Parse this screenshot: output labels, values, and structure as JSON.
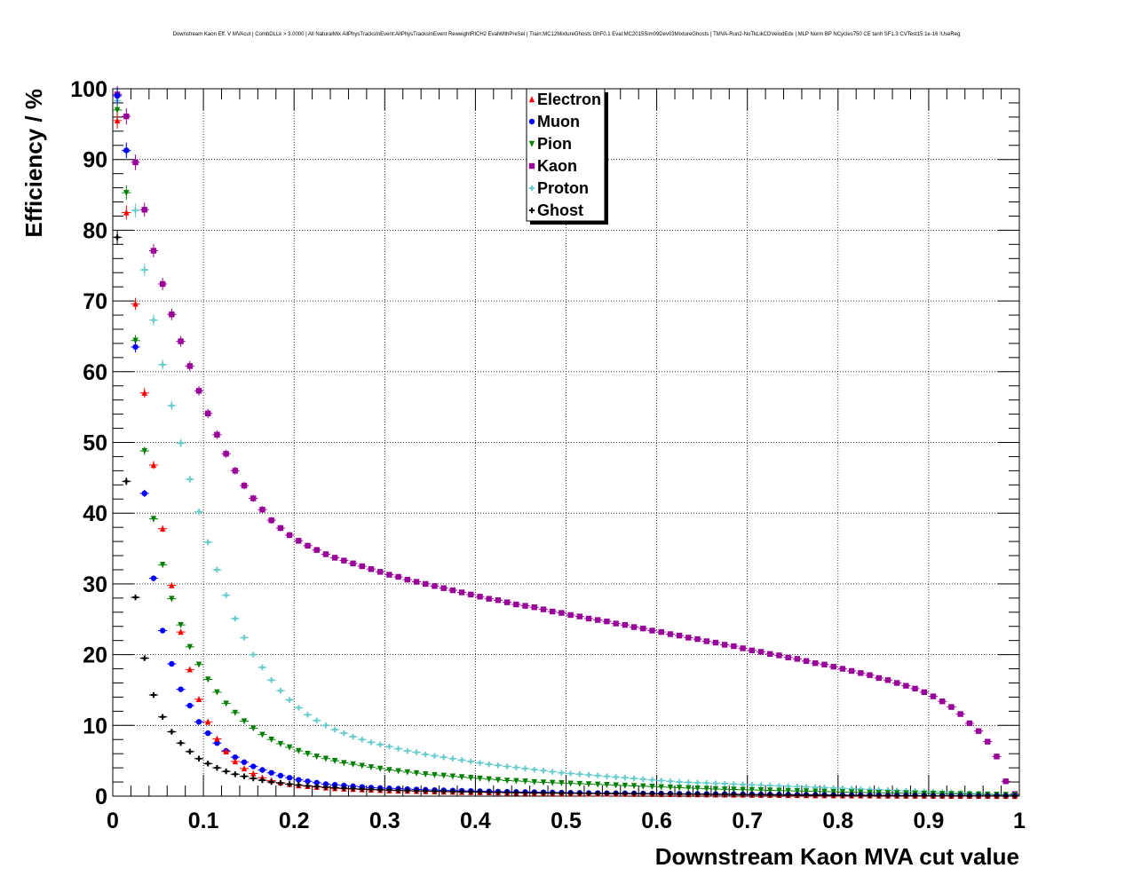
{
  "chart_data": {
    "type": "scatter",
    "title": "Downstream Kaon Eff. V MVAcut | CombDLLk > 3.0000 | All NaturalMix AllPhysTracksInEvent:AllPhysTracksInEvent ReweightRICH2 EvalWithPreSel | Train:MC12MixtureGhosts GhF0.1 Eval:MC2015Sim09Dev03MixtureGhosts | TMVA-Run2-NoTkLikCDVelodEdx | MLP Norm BP NCycles750 CE tanh SF1.3 CVTest15:1e-16 !UseReg",
    "xlabel": "Downstream Kaon MVA cut value",
    "ylabel": "Efficiency / %",
    "xlim": [
      0,
      1
    ],
    "ylim": [
      0,
      100
    ],
    "x_ticks": [
      "0",
      "0.1",
      "0.2",
      "0.3",
      "0.4",
      "0.5",
      "0.6",
      "0.7",
      "0.8",
      "0.9",
      "1"
    ],
    "y_ticks": [
      "0",
      "10",
      "20",
      "30",
      "40",
      "50",
      "60",
      "70",
      "80",
      "90",
      "100"
    ],
    "grid": true,
    "legend_position": "top-center",
    "x": [
      0.005,
      0.015,
      0.025,
      0.035,
      0.045,
      0.055,
      0.065,
      0.075,
      0.085,
      0.095,
      0.105,
      0.115,
      0.125,
      0.135,
      0.145,
      0.155,
      0.165,
      0.175,
      0.185,
      0.195,
      0.205,
      0.215,
      0.225,
      0.235,
      0.245,
      0.255,
      0.265,
      0.275,
      0.285,
      0.295,
      0.305,
      0.315,
      0.325,
      0.335,
      0.345,
      0.355,
      0.365,
      0.375,
      0.385,
      0.395,
      0.405,
      0.415,
      0.425,
      0.435,
      0.445,
      0.455,
      0.465,
      0.475,
      0.485,
      0.495,
      0.505,
      0.515,
      0.525,
      0.535,
      0.545,
      0.555,
      0.565,
      0.575,
      0.585,
      0.595,
      0.605,
      0.615,
      0.625,
      0.635,
      0.645,
      0.655,
      0.665,
      0.675,
      0.685,
      0.695,
      0.705,
      0.715,
      0.725,
      0.735,
      0.745,
      0.755,
      0.765,
      0.775,
      0.785,
      0.795,
      0.805,
      0.815,
      0.825,
      0.835,
      0.845,
      0.855,
      0.865,
      0.875,
      0.885,
      0.895,
      0.905,
      0.915,
      0.925,
      0.935,
      0.945,
      0.955,
      0.965,
      0.975,
      0.985,
      0.995
    ],
    "series": [
      {
        "name": "Electron",
        "color": "#ff0000",
        "marker": "triangle-up",
        "values": [
          95.5,
          82.5,
          69.6,
          57.0,
          46.8,
          37.8,
          29.8,
          23.2,
          17.9,
          13.7,
          10.5,
          8.1,
          6.3,
          4.9,
          3.9,
          3.2,
          2.6,
          2.2,
          1.9,
          1.7,
          1.5,
          1.4,
          1.3,
          1.2,
          1.1,
          1.05,
          1.0,
          0.95,
          0.9,
          0.85,
          0.8,
          0.77,
          0.74,
          0.71,
          0.68,
          0.65,
          0.62,
          0.6,
          0.58,
          0.56,
          0.54,
          0.52,
          0.5,
          0.48,
          0.46,
          0.44,
          0.42,
          0.41,
          0.4,
          0.39,
          0.38,
          0.37,
          0.36,
          0.35,
          0.34,
          0.33,
          0.32,
          0.31,
          0.3,
          0.29,
          0.28,
          0.27,
          0.26,
          0.25,
          0.24,
          0.23,
          0.22,
          0.21,
          0.2,
          0.19,
          0.18,
          0.17,
          0.16,
          0.15,
          0.14,
          0.13,
          0.12,
          0.11,
          0.1,
          0.1,
          0.09,
          0.09,
          0.08,
          0.08,
          0.07,
          0.07,
          0.06,
          0.06,
          0.05,
          0.05,
          0.04,
          0.04,
          0.03,
          0.03,
          0.02,
          0.02,
          0.02,
          0.01,
          0.01,
          0.01
        ]
      },
      {
        "name": "Muon",
        "color": "#0000ff",
        "marker": "circle",
        "values": [
          99.0,
          91.3,
          63.5,
          42.8,
          30.8,
          23.4,
          18.7,
          15.1,
          12.8,
          10.5,
          8.9,
          7.5,
          6.4,
          5.5,
          4.8,
          4.2,
          3.7,
          3.3,
          2.9,
          2.6,
          2.3,
          2.1,
          1.9,
          1.7,
          1.6,
          1.5,
          1.4,
          1.3,
          1.2,
          1.15,
          1.1,
          1.05,
          1.0,
          0.95,
          0.9,
          0.86,
          0.82,
          0.79,
          0.76,
          0.73,
          0.7,
          0.67,
          0.64,
          0.62,
          0.6,
          0.58,
          0.56,
          0.54,
          0.52,
          0.5,
          0.48,
          0.46,
          0.44,
          0.43,
          0.42,
          0.41,
          0.4,
          0.39,
          0.38,
          0.37,
          0.36,
          0.35,
          0.34,
          0.33,
          0.32,
          0.31,
          0.3,
          0.29,
          0.28,
          0.27,
          0.26,
          0.25,
          0.24,
          0.23,
          0.22,
          0.21,
          0.2,
          0.19,
          0.18,
          0.17,
          0.16,
          0.15,
          0.14,
          0.13,
          0.12,
          0.11,
          0.1,
          0.09,
          0.08,
          0.07,
          0.06,
          0.06,
          0.05,
          0.05,
          0.04,
          0.04,
          0.03,
          0.03,
          0.02,
          0.02
        ]
      },
      {
        "name": "Pion",
        "color": "#008000",
        "marker": "triangle-down",
        "values": [
          97.0,
          85.3,
          64.4,
          48.8,
          39.2,
          32.7,
          27.9,
          24.2,
          21.1,
          18.6,
          16.5,
          14.7,
          13.1,
          11.8,
          10.6,
          9.6,
          8.7,
          8.0,
          7.4,
          6.9,
          6.4,
          6.0,
          5.6,
          5.3,
          5.0,
          4.7,
          4.5,
          4.3,
          4.1,
          3.9,
          3.7,
          3.55,
          3.4,
          3.25,
          3.1,
          3.0,
          2.9,
          2.8,
          2.7,
          2.6,
          2.5,
          2.4,
          2.3,
          2.2,
          2.15,
          2.1,
          2.0,
          1.95,
          1.9,
          1.85,
          1.8,
          1.75,
          1.7,
          1.65,
          1.6,
          1.55,
          1.5,
          1.45,
          1.4,
          1.35,
          1.3,
          1.25,
          1.2,
          1.15,
          1.1,
          1.05,
          1.0,
          0.97,
          0.94,
          0.91,
          0.88,
          0.85,
          0.82,
          0.79,
          0.76,
          0.73,
          0.7,
          0.67,
          0.64,
          0.61,
          0.58,
          0.55,
          0.52,
          0.5,
          0.48,
          0.46,
          0.44,
          0.42,
          0.4,
          0.38,
          0.36,
          0.34,
          0.32,
          0.3,
          0.28,
          0.26,
          0.24,
          0.22,
          0.2,
          0.18
        ]
      },
      {
        "name": "Kaon",
        "color": "#990099",
        "marker": "square",
        "values": [
          99.2,
          96.1,
          89.6,
          82.9,
          77.1,
          72.4,
          68.1,
          64.3,
          60.8,
          57.3,
          54.1,
          51.1,
          48.4,
          46.0,
          43.9,
          42.1,
          40.5,
          39.0,
          37.9,
          36.9,
          36.1,
          35.4,
          34.8,
          34.2,
          33.7,
          33.3,
          32.9,
          32.5,
          32.1,
          31.7,
          31.3,
          31.0,
          30.6,
          30.3,
          30.0,
          29.7,
          29.4,
          29.1,
          28.8,
          28.5,
          28.2,
          27.9,
          27.7,
          27.4,
          27.1,
          26.9,
          26.7,
          26.4,
          26.1,
          25.9,
          25.6,
          25.4,
          25.1,
          24.9,
          24.7,
          24.4,
          24.2,
          23.9,
          23.7,
          23.4,
          23.2,
          22.9,
          22.7,
          22.4,
          22.2,
          21.9,
          21.7,
          21.4,
          21.2,
          20.9,
          20.6,
          20.4,
          20.1,
          19.9,
          19.6,
          19.4,
          19.1,
          18.8,
          18.6,
          18.3,
          18.0,
          17.7,
          17.4,
          17.1,
          16.7,
          16.4,
          16.0,
          15.6,
          15.2,
          14.7,
          14.1,
          13.4,
          12.6,
          11.6,
          10.3,
          9.2,
          7.7,
          5.6,
          2.1,
          0.3
        ]
      },
      {
        "name": "Proton",
        "color": "#66cccc",
        "marker": "cross",
        "values": [
          98.3,
          91.1,
          82.8,
          74.4,
          67.3,
          61.0,
          55.2,
          49.9,
          44.8,
          40.2,
          35.9,
          32.0,
          28.4,
          25.1,
          22.4,
          20.0,
          18.2,
          16.4,
          14.9,
          13.6,
          12.5,
          11.5,
          10.7,
          10.0,
          9.4,
          8.9,
          8.4,
          8.0,
          7.6,
          7.3,
          7.0,
          6.7,
          6.4,
          6.2,
          5.9,
          5.7,
          5.5,
          5.3,
          5.1,
          4.9,
          4.7,
          4.5,
          4.35,
          4.2,
          4.05,
          3.9,
          3.75,
          3.6,
          3.45,
          3.3,
          3.2,
          3.1,
          3.0,
          2.9,
          2.8,
          2.7,
          2.6,
          2.5,
          2.4,
          2.3,
          2.2,
          2.1,
          2.0,
          1.95,
          1.9,
          1.85,
          1.8,
          1.75,
          1.7,
          1.65,
          1.6,
          1.55,
          1.5,
          1.45,
          1.4,
          1.35,
          1.3,
          1.25,
          1.2,
          1.15,
          1.1,
          1.05,
          1.0,
          0.95,
          0.9,
          0.85,
          0.8,
          0.75,
          0.7,
          0.65,
          0.6,
          0.55,
          0.5,
          0.45,
          0.4,
          0.35,
          0.3,
          0.25,
          0.2,
          0.15
        ]
      },
      {
        "name": "Ghost",
        "color": "#000000",
        "marker": "cross",
        "values": [
          79.0,
          44.5,
          28.1,
          19.5,
          14.3,
          11.2,
          9.1,
          7.5,
          6.3,
          5.3,
          4.6,
          4.0,
          3.5,
          3.1,
          2.8,
          2.5,
          2.25,
          2.0,
          1.85,
          1.7,
          1.58,
          1.46,
          1.36,
          1.27,
          1.19,
          1.12,
          1.06,
          1.0,
          0.95,
          0.9,
          0.86,
          0.82,
          0.78,
          0.75,
          0.72,
          0.69,
          0.66,
          0.64,
          0.62,
          0.6,
          0.58,
          0.56,
          0.54,
          0.52,
          0.5,
          0.48,
          0.46,
          0.45,
          0.44,
          0.43,
          0.42,
          0.41,
          0.4,
          0.39,
          0.38,
          0.37,
          0.36,
          0.35,
          0.34,
          0.33,
          0.32,
          0.31,
          0.3,
          0.29,
          0.28,
          0.27,
          0.26,
          0.25,
          0.24,
          0.23,
          0.22,
          0.21,
          0.2,
          0.19,
          0.18,
          0.17,
          0.16,
          0.15,
          0.14,
          0.13,
          0.12,
          0.11,
          0.1,
          0.1,
          0.09,
          0.09,
          0.08,
          0.08,
          0.07,
          0.07,
          0.06,
          0.06,
          0.05,
          0.05,
          0.04,
          0.04,
          0.03,
          0.03,
          0.02,
          0.02
        ]
      }
    ]
  }
}
